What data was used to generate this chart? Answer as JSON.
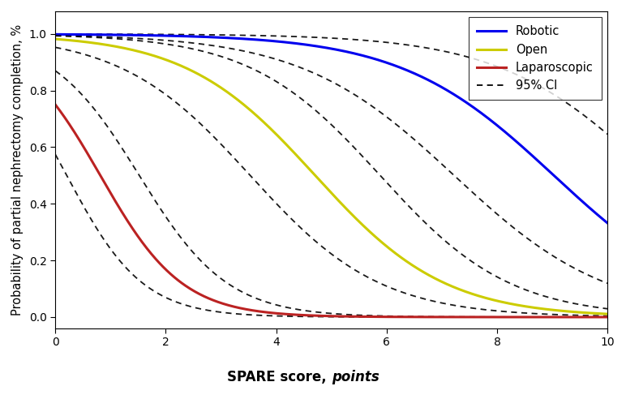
{
  "ylabel": "Probability of partial nephrectomy completion, %",
  "xlabel_normal": "SPARE score, ",
  "xlabel_italic": "points",
  "xlim": [
    0,
    10
  ],
  "ylim": [
    -0.04,
    1.08
  ],
  "yticks": [
    0.0,
    0.2,
    0.4,
    0.6,
    0.8,
    1.0
  ],
  "xticks": [
    0,
    2,
    4,
    6,
    8,
    10
  ],
  "background_color": "#FFFFFF",
  "linewidth": 2.2,
  "ci_linewidth": 1.3,
  "series": [
    {
      "name": "Robotic",
      "color": "#0000EE",
      "intercept": 6.5,
      "slope": -0.72,
      "ci_upper_intercept": 7.8,
      "ci_upper_slope": -0.72,
      "ci_lower_intercept": 5.2,
      "ci_lower_slope": -0.72
    },
    {
      "name": "Open",
      "color": "#CCCC00",
      "intercept": 4.0,
      "slope": -0.85,
      "ci_upper_intercept": 5.0,
      "ci_upper_slope": -0.85,
      "ci_lower_intercept": 3.0,
      "ci_lower_slope": -0.85
    },
    {
      "name": "Laparoscopic",
      "color": "#BB2222",
      "intercept": 1.1,
      "slope": -1.35,
      "ci_upper_intercept": 1.9,
      "ci_upper_slope": -1.25,
      "ci_lower_intercept": 0.3,
      "ci_lower_slope": -1.45
    }
  ],
  "legend_loc": "upper right",
  "legend_fontsize": 10.5
}
